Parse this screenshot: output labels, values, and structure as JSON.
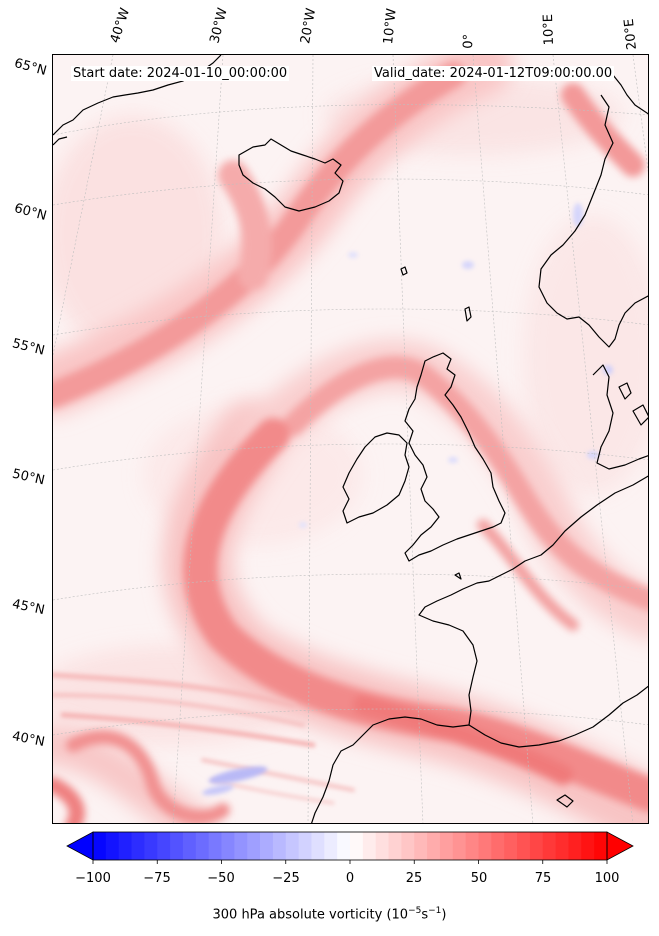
{
  "map": {
    "start_date": "Start date: 2024-01-10_00:00:00",
    "valid_date": "Valid_date: 2024-01-12T09:00:00.00",
    "field": "300 hPa absolute vorticity",
    "colormap": "bwr",
    "lon_labels": [
      "40°W",
      "30°W",
      "20°W",
      "10°W",
      "0°",
      "10°E",
      "20°E"
    ],
    "lat_labels": [
      "65°N",
      "60°N",
      "55°N",
      "50°N",
      "45°N",
      "40°N"
    ],
    "colors": {
      "neg": "#0000ff",
      "zero": "#ffffff",
      "pos": "#ff0000",
      "coast": "#000000"
    }
  },
  "colorbar": {
    "ticks": [
      "−100",
      "−75",
      "−50",
      "−25",
      "0",
      "25",
      "50",
      "75",
      "100"
    ],
    "label_main": "300 hPa absolute vorticity (10",
    "label_sup1": "−5",
    "label_mid": "s",
    "label_sup2": "−1",
    "label_end": ")",
    "vmin": -100,
    "vmax": 100,
    "extend": "both"
  }
}
